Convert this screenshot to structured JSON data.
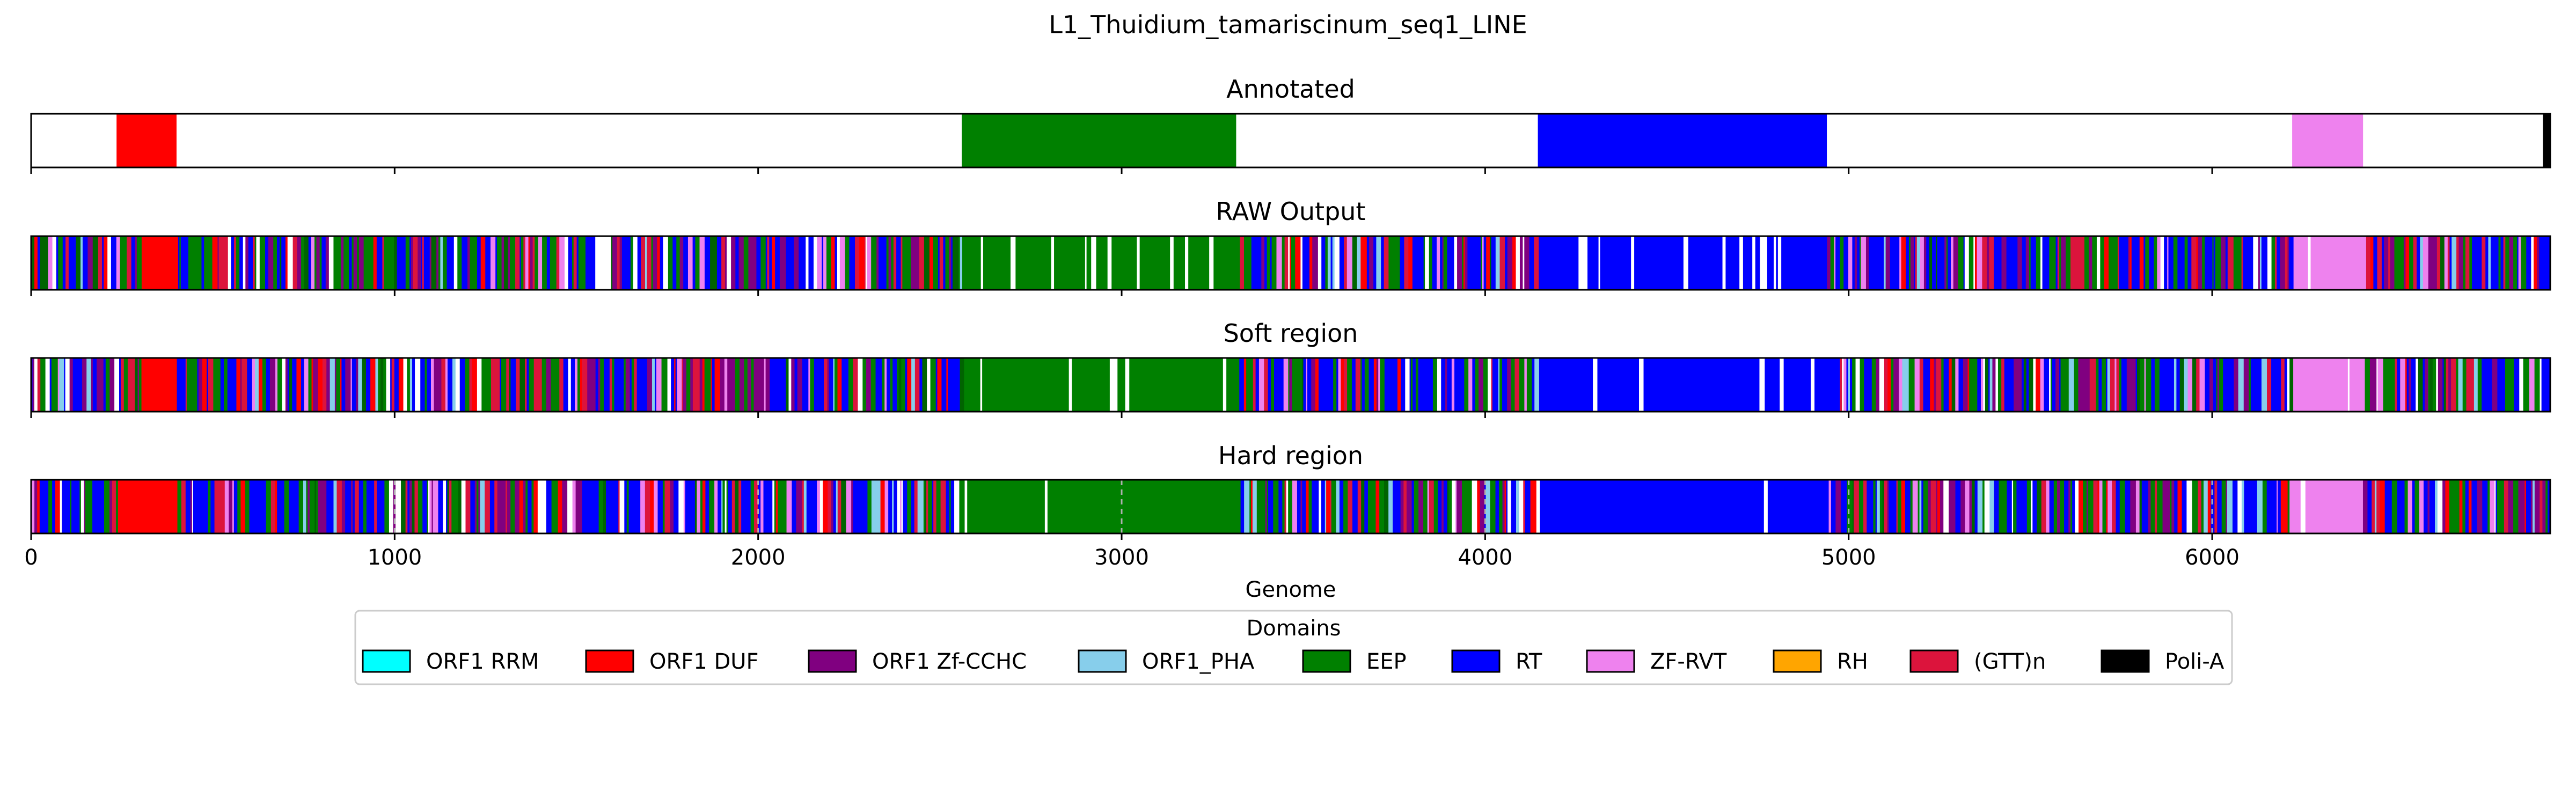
{
  "chart_data": {
    "type": "bar",
    "title": "L1_Thuidium_tamariscinum_seq1_LINE",
    "xlabel": "Genome",
    "xlim": [
      0,
      6930
    ],
    "xticks": [
      0,
      1000,
      2000,
      3000,
      4000,
      5000,
      6000
    ],
    "grid": "x (dashed, Hard region panel only)",
    "panels": [
      {
        "title": "Annotated",
        "segments": [
          {
            "start": 235,
            "end": 400,
            "domain": "ORF1 DUF"
          },
          {
            "start": 2560,
            "end": 3315,
            "domain": "EEP"
          },
          {
            "start": 4145,
            "end": 4940,
            "domain": "RT"
          },
          {
            "start": 6220,
            "end": 6415,
            "domain": "ZF-RVT"
          },
          {
            "start": 6910,
            "end": 6930,
            "domain": "Poli-A"
          }
        ]
      },
      {
        "title": "RAW Output",
        "dense_prediction": true,
        "dominant_regions": [
          {
            "start": 300,
            "end": 400,
            "domain": "ORF1 DUF"
          },
          {
            "start": 2560,
            "end": 3315,
            "domain": "EEP"
          },
          {
            "start": 4145,
            "end": 4940,
            "domain": "RT"
          },
          {
            "start": 6220,
            "end": 6415,
            "domain": "ZF-RVT"
          }
        ]
      },
      {
        "title": "Soft region",
        "dense_prediction": true,
        "dominant_regions": [
          {
            "start": 300,
            "end": 400,
            "domain": "ORF1 DUF"
          },
          {
            "start": 2560,
            "end": 3315,
            "domain": "EEP"
          },
          {
            "start": 4145,
            "end": 4940,
            "domain": "RT"
          },
          {
            "start": 6220,
            "end": 6415,
            "domain": "ZF-RVT"
          }
        ]
      },
      {
        "title": "Hard region",
        "dense_prediction": true,
        "dominant_regions": [
          {
            "start": 235,
            "end": 400,
            "domain": "ORF1 DUF"
          },
          {
            "start": 2570,
            "end": 3315,
            "domain": "EEP"
          },
          {
            "start": 4145,
            "end": 4940,
            "domain": "RT"
          },
          {
            "start": 6210,
            "end": 6410,
            "domain": "ZF-RVT"
          }
        ]
      }
    ],
    "legend": {
      "title": "Domains",
      "placement": "bottom-center",
      "entries": [
        {
          "label": "ORF1 RRM",
          "color": "#00ffff"
        },
        {
          "label": "ORF1 DUF",
          "color": "#ff0000"
        },
        {
          "label": "ORF1 Zf-CCHC",
          "color": "#800080"
        },
        {
          "label": "ORF1_PHA",
          "color": "#87ceeb"
        },
        {
          "label": "EEP",
          "color": "#008000"
        },
        {
          "label": "RT",
          "color": "#0000ff"
        },
        {
          "label": "ZF-RVT",
          "color": "#ee82ee"
        },
        {
          "label": "RH",
          "color": "#ffa500"
        },
        {
          "label": "(GTT)n",
          "color": "#dc143c"
        },
        {
          "label": "Poli-A",
          "color": "#000000"
        }
      ]
    }
  }
}
